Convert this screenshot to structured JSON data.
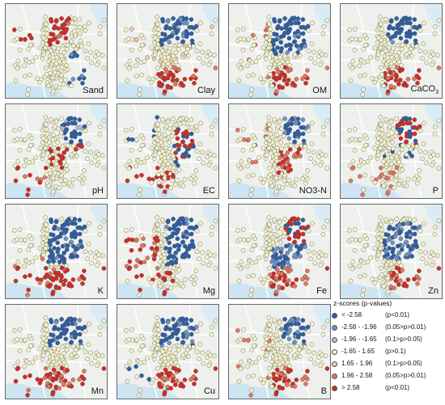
{
  "panels": [
    {
      "label": "Sand",
      "sub": ""
    },
    {
      "label": "Clay",
      "sub": ""
    },
    {
      "label": "OM",
      "sub": ""
    },
    {
      "label": "CaCO",
      "sub": "3"
    },
    {
      "label": "pH",
      "sub": ""
    },
    {
      "label": "EC",
      "sub": ""
    },
    {
      "label": "NO3-N",
      "sub": ""
    },
    {
      "label": "P",
      "sub": ""
    },
    {
      "label": "K",
      "sub": ""
    },
    {
      "label": "Mg",
      "sub": ""
    },
    {
      "label": "Fe",
      "sub": ""
    },
    {
      "label": "Zn",
      "sub": ""
    },
    {
      "label": "Mn",
      "sub": ""
    },
    {
      "label": "Cu",
      "sub": ""
    },
    {
      "label": "B",
      "sub": ""
    }
  ],
  "legend": {
    "title": "z-scores (p-values)",
    "items": [
      {
        "range": "< -2.58",
        "p": "(p<0.01)",
        "color": "#2b5ea8"
      },
      {
        "range": "-2.58 - -1.96",
        "p": "(0.05>p>0.01)",
        "color": "#6f93c2"
      },
      {
        "range": "-1.96 - -1.65",
        "p": "(0.1>p>0.05)",
        "color": "#aebfd6"
      },
      {
        "range": "-1.65 - 1.65",
        "p": "(p>0.1)",
        "color": "#f4f2c8"
      },
      {
        "range": "1.65 - 1.96",
        "p": "(0.1>p>0.05)",
        "color": "#f2c8a0"
      },
      {
        "range": "1.96 - 2.58",
        "p": "(0.05>p>0.01)",
        "color": "#e4765c"
      },
      {
        "range": "> 2.58",
        "p": "(p<0.01)",
        "color": "#d42a22"
      }
    ]
  }
}
